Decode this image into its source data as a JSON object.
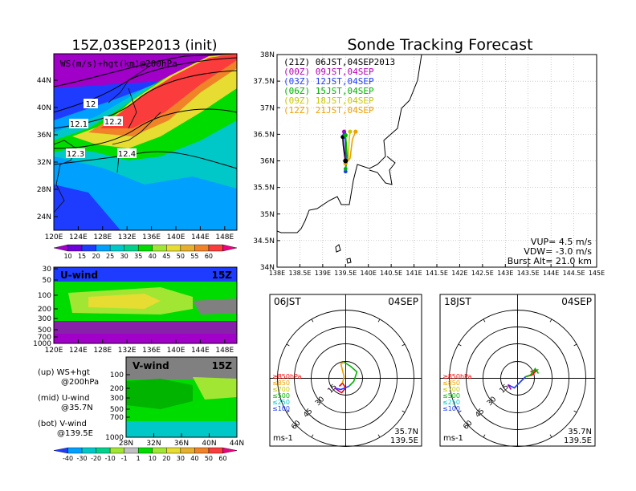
{
  "titles": {
    "left": "15Z,03SEP2013 (init)",
    "right": "Sonde Tracking Forecast"
  },
  "ws_map": {
    "label": "WS(m/s)+hgt(km)@200hPa",
    "lat_ticks": [
      "44N",
      "40N",
      "36N",
      "32N",
      "28N",
      "24N"
    ],
    "lon_ticks": [
      "120E",
      "124E",
      "128E",
      "132E",
      "136E",
      "140E",
      "144E",
      "148E"
    ],
    "contour_labels": [
      "12",
      "12.1",
      "12.2",
      "12.3",
      "12.4"
    ]
  },
  "ws_colorbar": {
    "labels": [
      "10",
      "15",
      "20",
      "25",
      "30",
      "35",
      "40",
      "45",
      "50",
      "55",
      "60"
    ],
    "colors": [
      "#a000c8",
      "#6e00dc",
      "#1e3cff",
      "#00a0ff",
      "#00c8c8",
      "#00d28c",
      "#00dc00",
      "#a0e632",
      "#e6dc32",
      "#e6af2d",
      "#f08228",
      "#fa3c3c",
      "#f00082"
    ]
  },
  "u_wind": {
    "label": "U-wind",
    "time": "15Z",
    "p_ticks": [
      "30",
      "50",
      "100",
      "200",
      "300",
      "500",
      "700",
      "1000"
    ],
    "lon_ticks": [
      "120E",
      "124E",
      "128E",
      "132E",
      "136E",
      "140E",
      "144E",
      "148E"
    ]
  },
  "v_wind": {
    "label": "V-wind",
    "time": "15Z",
    "p_ticks": [
      "100",
      "200",
      "300",
      "500",
      "700",
      "1000"
    ],
    "lat_ticks": [
      "28N",
      "32N",
      "36N",
      "40N",
      "44N"
    ]
  },
  "legend_notes": {
    "up_1": "(up) WS+hgt",
    "up_2": "@200hPa",
    "mid_1": "(mid) U-wind",
    "mid_2": "@35.7N",
    "bot_1": "(bot) V-wind",
    "bot_2": "@139.5E"
  },
  "wind_colorbar": {
    "labels": [
      "-40",
      "-30",
      "-20",
      "-10",
      "-1",
      "1",
      "10",
      "20",
      "30",
      "40",
      "50",
      "60"
    ],
    "colors": [
      "#1e3cff",
      "#00a0ff",
      "#00c8c8",
      "#00d28c",
      "#a0e632",
      "#c0c0c0",
      "#00dc00",
      "#a0e632",
      "#e6dc32",
      "#e6af2d",
      "#f08228",
      "#fa3c3c",
      "#f00082"
    ]
  },
  "track_map": {
    "lat_ticks": [
      "38N",
      "37.5N",
      "37N",
      "36.5N",
      "36N",
      "35.5N",
      "35N",
      "34.5N",
      "34N"
    ],
    "lon_ticks": [
      "138E",
      "138.5E",
      "139E",
      "139.5E",
      "140E",
      "140.5E",
      "141E",
      "141.5E",
      "142E",
      "142.5E",
      "143E",
      "143.5E",
      "144E",
      "144.5E",
      "145E"
    ],
    "legend": [
      {
        "text": "(21Z)  06JST,04SEP2013",
        "color": "#000000"
      },
      {
        "text": "(00Z)  09JST,04SEP",
        "color": "#b400b4"
      },
      {
        "text": "(03Z)  12JST,04SEP",
        "color": "#1e3cff"
      },
      {
        "text": "(06Z)  15JST,04SEP",
        "color": "#00b400"
      },
      {
        "text": "(09Z)  18JST,04SEP",
        "color": "#c8c800"
      },
      {
        "text": "(12Z)  21JST,04SEP",
        "color": "#f0a000"
      }
    ],
    "vup": "VUP= 4.5 m/s",
    "vdw": "VDW= -3.0 m/s",
    "burst": "Burst Alt= 21.0 km"
  },
  "hodo_left": {
    "time": "06JST",
    "date": "04SEP",
    "lat": "35.7N",
    "lon": "139.5E",
    "units": "ms-1",
    "ring_labels": [
      "15",
      "30",
      "45",
      "60"
    ],
    "levels": [
      {
        "text": "≥850hPa",
        "color": "#fa0000"
      },
      {
        "text": "≤850",
        "color": "#f0a000"
      },
      {
        "text": "≤700",
        "color": "#c8c800"
      },
      {
        "text": "≤500",
        "color": "#00b400"
      },
      {
        "text": "≤250",
        "color": "#00c8c8"
      },
      {
        "text": "≤100",
        "color": "#1e3cff"
      }
    ]
  },
  "hodo_right": {
    "time": "18JST",
    "date": "04SEP",
    "lat": "35.7N",
    "lon": "139.5E",
    "units": "ms-1",
    "ring_labels": [
      "15",
      "30",
      "45",
      "60"
    ],
    "levels": [
      {
        "text": "≥850hPa",
        "color": "#fa0000"
      },
      {
        "text": "≤850",
        "color": "#f0a000"
      },
      {
        "text": "≤700",
        "color": "#c8c800"
      },
      {
        "text": "≤500",
        "color": "#00b400"
      },
      {
        "text": "≤250",
        "color": "#00c8c8"
      },
      {
        "text": "≤100",
        "color": "#1e3cff"
      }
    ]
  },
  "chart_data": [
    {
      "type": "heatmap",
      "title": "WS(m/s)+hgt(km)@200hPa",
      "xlim": [
        120,
        150
      ],
      "ylim": [
        22,
        47
      ],
      "contours": [
        12,
        12.1,
        12.2,
        12.3,
        12.4
      ],
      "jet_max": 60
    },
    {
      "type": "line",
      "title": "Sonde Tracking Forecast",
      "xlim": [
        138,
        145
      ],
      "ylim": [
        34,
        38
      ],
      "launch": [
        139.5,
        36.0
      ],
      "series": [
        {
          "name": "(21Z)  06JST,04SEP2013",
          "x": [
            139.5,
            139.48,
            139.45,
            139.44
          ],
          "y": [
            35.95,
            36.1,
            36.3,
            36.45
          ]
        },
        {
          "name": "(00Z)  09JST,04SEP",
          "x": [
            139.5,
            139.5,
            139.49,
            139.47
          ],
          "y": [
            35.95,
            36.15,
            36.4,
            36.55
          ]
        },
        {
          "name": "(03Z)  12JST,04SEP",
          "x": [
            139.5,
            139.51,
            139.5,
            139.48
          ],
          "y": [
            35.8,
            36.0,
            36.3,
            36.5
          ]
        },
        {
          "name": "(06Z)  15JST,04SEP",
          "x": [
            139.5,
            139.54,
            139.52,
            139.5
          ],
          "y": [
            35.85,
            36.02,
            36.3,
            36.48
          ]
        },
        {
          "name": "(09Z)  18JST,04SEP",
          "x": [
            139.5,
            139.56,
            139.58,
            139.6
          ],
          "y": [
            35.95,
            36.05,
            36.4,
            36.55
          ]
        },
        {
          "name": "(12Z)  21JST,04SEP",
          "x": [
            139.5,
            139.6,
            139.65,
            139.72
          ],
          "y": [
            35.95,
            36.05,
            36.4,
            36.55
          ]
        }
      ]
    }
  ]
}
